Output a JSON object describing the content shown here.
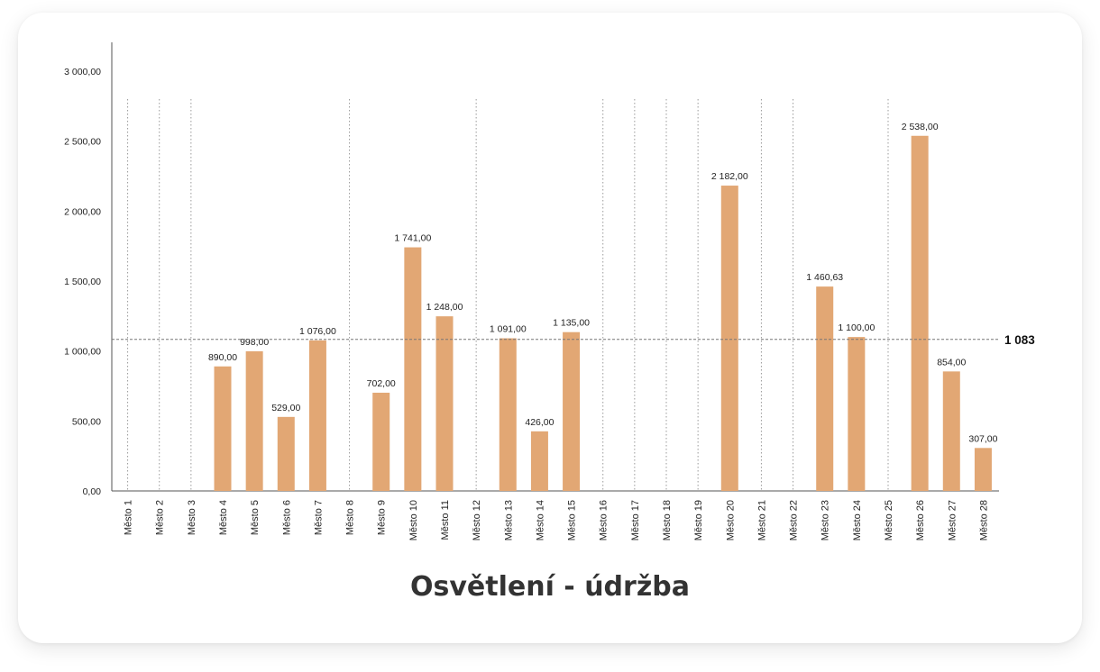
{
  "chart_data": {
    "type": "bar",
    "title": "Osvětlení - údržba",
    "categories": [
      "Město 1",
      "Město 2",
      "Město 3",
      "Město 4",
      "Město 5",
      "Město 6",
      "Město 7",
      "Město 8",
      "Město 9",
      "Město 10",
      "Město 11",
      "Město 12",
      "Město 13",
      "Město 14",
      "Město 15",
      "Město 16",
      "Město 17",
      "Město 18",
      "Město 19",
      "Město 20",
      "Město 21",
      "Město 22",
      "Město 23",
      "Město 24",
      "Město 25",
      "Město 26",
      "Město 27",
      "Město 28"
    ],
    "values": [
      null,
      null,
      null,
      890,
      998,
      529,
      1076,
      null,
      702,
      1741,
      1248,
      null,
      1091,
      426,
      1135,
      null,
      null,
      null,
      null,
      2182,
      null,
      null,
      1460.63,
      1100,
      null,
      2538,
      854,
      307
    ],
    "data_labels": [
      "",
      "",
      "",
      "890,00",
      "998,00",
      "529,00",
      "1 076,00",
      "",
      "702,00",
      "1 741,00",
      "1 248,00",
      "",
      "1 091,00",
      "426,00",
      "1 135,00",
      "",
      "",
      "",
      "",
      "2 182,00",
      "",
      "",
      "1 460,63",
      "1 100,00",
      "",
      "2 538,00",
      "854,00",
      "307,00"
    ],
    "y_ticks": [
      0,
      500,
      1000,
      1500,
      2000,
      2500,
      3000
    ],
    "y_tick_labels": [
      "0,00",
      "500,00",
      "1 000,00",
      "1 500,00",
      "2 000,00",
      "2 500,00",
      "3 000,00"
    ],
    "ylim": [
      0,
      3000
    ],
    "reference_line": {
      "value": 1083,
      "label": "1 083"
    },
    "bar_color": "#e2a774",
    "grid": "vertical dotted lines at empty categories",
    "legend": "none",
    "xlabel": "",
    "ylabel": ""
  }
}
